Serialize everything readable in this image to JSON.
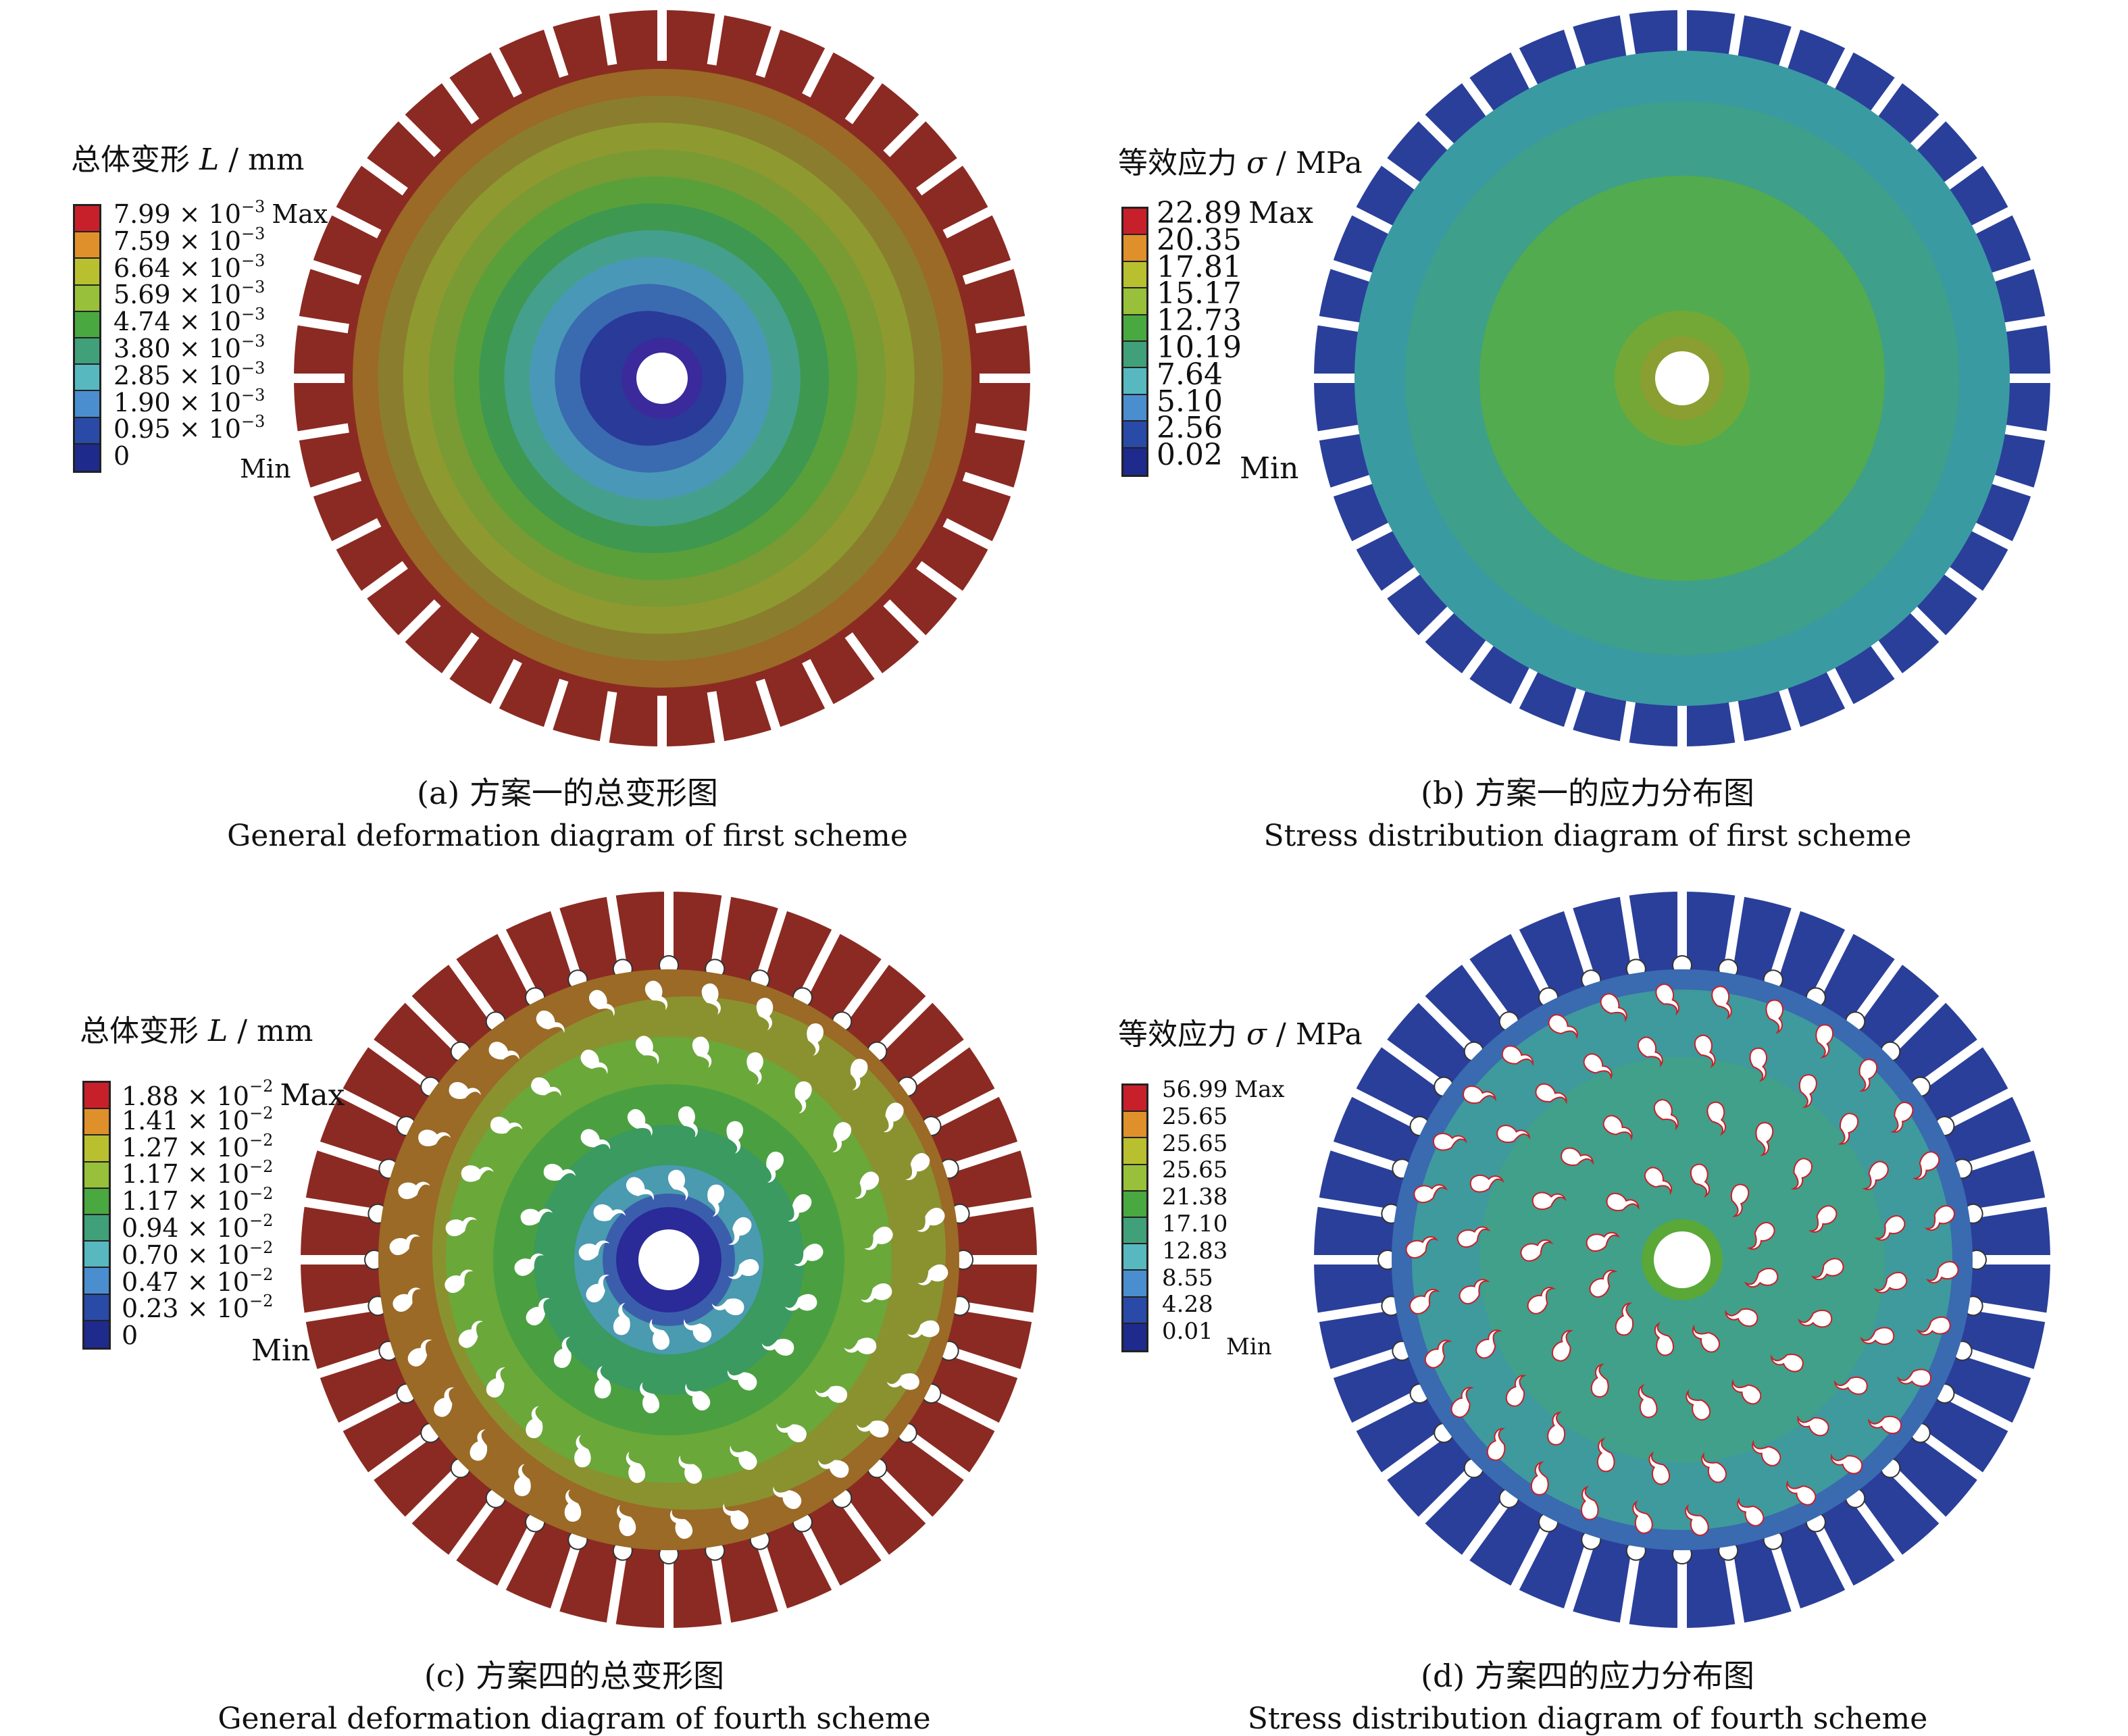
{
  "panels": {
    "a": {
      "legend_title_prefix": "总体变形 ",
      "legend_title_var": "L",
      "legend_title_unit": " / mm",
      "levels": [
        {
          "mantissa": "7.99 × 10",
          "exp": "−3",
          "tag": "Max",
          "color": "#c8202a"
        },
        {
          "mantissa": "7.59 × 10",
          "exp": "−3",
          "tag": "",
          "color": "#e0902a"
        },
        {
          "mantissa": "6.64 × 10",
          "exp": "−3",
          "tag": "",
          "color": "#b8c030"
        },
        {
          "mantissa": "5.69 × 10",
          "exp": "−3",
          "tag": "",
          "color": "#98c03a"
        },
        {
          "mantissa": "4.74 × 10",
          "exp": "−3",
          "tag": "",
          "color": "#4aa840"
        },
        {
          "mantissa": "3.80 × 10",
          "exp": "−3",
          "tag": "",
          "color": "#40a07a"
        },
        {
          "mantissa": "2.85 × 10",
          "exp": "−3",
          "tag": "",
          "color": "#58b8c0"
        },
        {
          "mantissa": "1.90 × 10",
          "exp": "−3",
          "tag": "",
          "color": "#4a8ed0"
        },
        {
          "mantissa": "0.95 × 10",
          "exp": "−3",
          "tag": "",
          "color": "#2a4aa8"
        },
        {
          "mantissa": "0",
          "exp": "",
          "tag": "",
          "color": "#1e2a8c"
        }
      ],
      "min_label": "Min",
      "caption_cn": "(a) 方案一的总变形图",
      "caption_en": "General deformation diagram of first scheme"
    },
    "b": {
      "legend_title_prefix": "等效应力 ",
      "legend_title_var": "σ",
      "legend_title_unit": " / MPa",
      "levels": [
        {
          "mantissa": "22.89",
          "exp": "",
          "tag": "Max",
          "color": "#c8202a"
        },
        {
          "mantissa": "20.35",
          "exp": "",
          "tag": "",
          "color": "#e0902a"
        },
        {
          "mantissa": "17.81",
          "exp": "",
          "tag": "",
          "color": "#b8c030"
        },
        {
          "mantissa": "15.17",
          "exp": "",
          "tag": "",
          "color": "#98c03a"
        },
        {
          "mantissa": "12.73",
          "exp": "",
          "tag": "",
          "color": "#4aa840"
        },
        {
          "mantissa": "10.19",
          "exp": "",
          "tag": "",
          "color": "#40a07a"
        },
        {
          "mantissa": "7.64",
          "exp": "",
          "tag": "",
          "color": "#58b8c0"
        },
        {
          "mantissa": "5.10",
          "exp": "",
          "tag": "",
          "color": "#4a8ed0"
        },
        {
          "mantissa": "2.56",
          "exp": "",
          "tag": "",
          "color": "#2a4aa8"
        },
        {
          "mantissa": "0.02",
          "exp": "",
          "tag": "",
          "color": "#1e2a8c"
        }
      ],
      "min_label": "Min",
      "caption_cn": "(b) 方案一的应力分布图",
      "caption_en": "Stress distribution diagram of first scheme"
    },
    "c": {
      "legend_title_prefix": "总体变形 ",
      "legend_title_var": "L",
      "legend_title_unit": " / mm",
      "levels": [
        {
          "mantissa": "1.88 × 10",
          "exp": "−2",
          "tag": "Max",
          "color": "#c8202a"
        },
        {
          "mantissa": "1.41 × 10",
          "exp": "−2",
          "tag": "",
          "color": "#e0902a"
        },
        {
          "mantissa": "1.27 × 10",
          "exp": "−2",
          "tag": "",
          "color": "#b8c030"
        },
        {
          "mantissa": "1.17 × 10",
          "exp": "−2",
          "tag": "",
          "color": "#98c03a"
        },
        {
          "mantissa": "1.17 × 10",
          "exp": "−2",
          "tag": "",
          "color": "#4aa840"
        },
        {
          "mantissa": "0.94 × 10",
          "exp": "−2",
          "tag": "",
          "color": "#40a07a"
        },
        {
          "mantissa": "0.70 × 10",
          "exp": "−2",
          "tag": "",
          "color": "#58b8c0"
        },
        {
          "mantissa": "0.47 × 10",
          "exp": "−2",
          "tag": "",
          "color": "#4a8ed0"
        },
        {
          "mantissa": "0.23 × 10",
          "exp": "−2",
          "tag": "",
          "color": "#2a4aa8"
        },
        {
          "mantissa": "0",
          "exp": "",
          "tag": "",
          "color": "#1e2a8c"
        }
      ],
      "min_label": "Min",
      "caption_cn": "(c) 方案四的总变形图",
      "caption_en": "General deformation diagram of fourth scheme"
    },
    "d": {
      "legend_title_prefix": "等效应力 ",
      "legend_title_var": "σ",
      "legend_title_unit": " / MPa",
      "levels": [
        {
          "mantissa": "56.99",
          "exp": "",
          "tag": "Max",
          "color": "#c8202a"
        },
        {
          "mantissa": "25.65",
          "exp": "",
          "tag": "",
          "color": "#e0902a"
        },
        {
          "mantissa": "25.65",
          "exp": "",
          "tag": "",
          "color": "#b8c030"
        },
        {
          "mantissa": "25.65",
          "exp": "",
          "tag": "",
          "color": "#98c03a"
        },
        {
          "mantissa": "21.38",
          "exp": "",
          "tag": "",
          "color": "#4aa840"
        },
        {
          "mantissa": "17.10",
          "exp": "",
          "tag": "",
          "color": "#40a07a"
        },
        {
          "mantissa": "12.83",
          "exp": "",
          "tag": "",
          "color": "#58b8c0"
        },
        {
          "mantissa": "8.55",
          "exp": "",
          "tag": "",
          "color": "#4a8ed0"
        },
        {
          "mantissa": "4.28",
          "exp": "",
          "tag": "",
          "color": "#2a4aa8"
        },
        {
          "mantissa": "0.01",
          "exp": "",
          "tag": "",
          "color": "#1e2a8c"
        }
      ],
      "min_label": "Min",
      "caption_cn": "(d) 方案四的应力分布图",
      "caption_en": "Stress distribution diagram of fourth scheme"
    }
  },
  "colors": {
    "a_rings": [
      "#8b2a22",
      "#9a6a26",
      "#8a7e2e",
      "#8e9a30",
      "#7a9a34",
      "#5aa03a",
      "#3e9850",
      "#44a08c",
      "#4a98b8",
      "#3a6ab0",
      "#2a3a98"
    ],
    "b_rings": [
      "#2a3f9a",
      "#3a9aa2",
      "#3e9f8a",
      "#52ab4e",
      "#5aa838",
      "#8a9e32"
    ],
    "c_rings": [
      "#8b2a22",
      "#9a6a26",
      "#8a9230",
      "#6aa83a",
      "#4aa040",
      "#3a9a60",
      "#4a9ab0",
      "#3a5eac",
      "#2a2a98"
    ],
    "d_rings": [
      "#2a3f9a",
      "#3a6ab0",
      "#3e9a9c",
      "#40a08a",
      "#5aa838"
    ],
    "hole": "#ffffff",
    "slot": "#ffffff"
  }
}
